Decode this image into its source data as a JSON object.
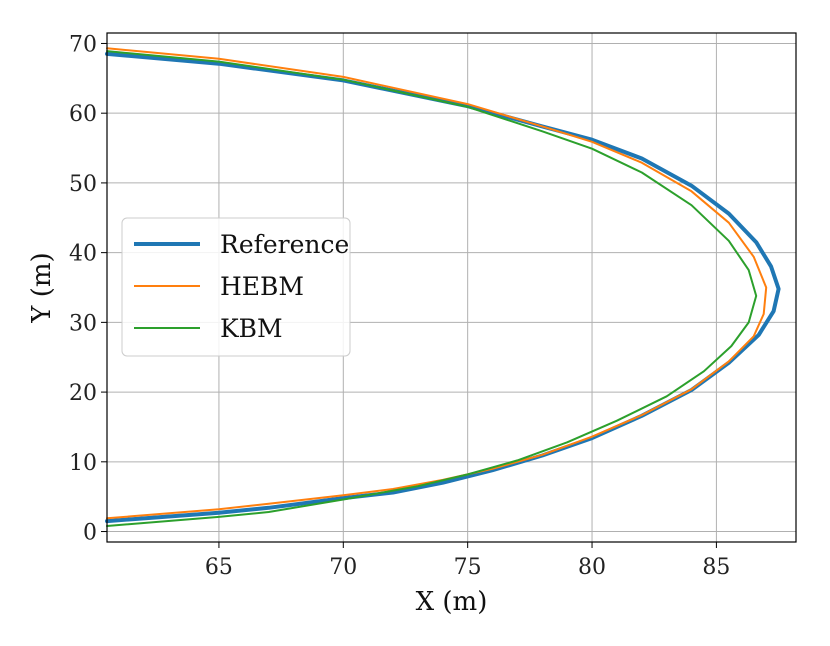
{
  "chart_data": {
    "type": "line",
    "xlabel": "X (m)",
    "ylabel": "Y (m)",
    "xlim": [
      60.5,
      88.2
    ],
    "ylim": [
      -1.5,
      71.5
    ],
    "x_ticks": [
      65,
      70,
      75,
      80,
      85
    ],
    "y_ticks": [
      0,
      10,
      20,
      30,
      40,
      50,
      60,
      70
    ],
    "grid": true,
    "legend_position": "center-left",
    "series": [
      {
        "name": "Reference",
        "color": "#1f77b4",
        "points": [
          [
            60.5,
            68.5
          ],
          [
            65,
            67.1
          ],
          [
            70,
            64.7
          ],
          [
            75,
            61.0
          ],
          [
            78,
            58.1
          ],
          [
            80,
            56.2
          ],
          [
            82,
            53.5
          ],
          [
            84,
            49.6
          ],
          [
            85.5,
            45.6
          ],
          [
            86.6,
            41.5
          ],
          [
            87.2,
            38.0
          ],
          [
            87.5,
            34.8
          ],
          [
            87.3,
            31.6
          ],
          [
            86.7,
            28.2
          ],
          [
            85.5,
            24.2
          ],
          [
            84,
            20.3
          ],
          [
            82,
            16.6
          ],
          [
            80,
            13.4
          ],
          [
            78,
            10.9
          ],
          [
            76,
            8.8
          ],
          [
            74,
            7.0
          ],
          [
            72,
            5.6
          ],
          [
            70,
            4.8
          ],
          [
            67,
            3.4
          ],
          [
            65,
            2.7
          ],
          [
            60.5,
            1.5
          ]
        ]
      },
      {
        "name": "HEBM",
        "color": "#ff7f0e",
        "points": [
          [
            60.5,
            69.3
          ],
          [
            65,
            67.8
          ],
          [
            70,
            65.2
          ],
          [
            75,
            61.3
          ],
          [
            78,
            58.1
          ],
          [
            80,
            55.9
          ],
          [
            82,
            52.9
          ],
          [
            84,
            48.8
          ],
          [
            85.5,
            44.3
          ],
          [
            86.5,
            39.4
          ],
          [
            87.0,
            35.0
          ],
          [
            86.9,
            31.2
          ],
          [
            86.5,
            28.0
          ],
          [
            85.5,
            24.4
          ],
          [
            84,
            20.4
          ],
          [
            82,
            16.7
          ],
          [
            80,
            13.6
          ],
          [
            78,
            11.0
          ],
          [
            76,
            9.0
          ],
          [
            74,
            7.4
          ],
          [
            72,
            6.1
          ],
          [
            70,
            5.2
          ],
          [
            67,
            4.0
          ],
          [
            65,
            3.2
          ],
          [
            60.5,
            1.9
          ]
        ]
      },
      {
        "name": "KBM",
        "color": "#2ca02c",
        "points": [
          [
            60.5,
            68.9
          ],
          [
            65,
            67.4
          ],
          [
            70,
            64.8
          ],
          [
            75,
            60.9
          ],
          [
            78,
            57.4
          ],
          [
            80,
            54.9
          ],
          [
            82,
            51.5
          ],
          [
            84,
            46.8
          ],
          [
            85.5,
            41.7
          ],
          [
            86.3,
            37.5
          ],
          [
            86.6,
            33.8
          ],
          [
            86.3,
            30.0
          ],
          [
            85.6,
            26.6
          ],
          [
            84.5,
            23.0
          ],
          [
            83,
            19.4
          ],
          [
            81,
            15.9
          ],
          [
            79,
            12.8
          ],
          [
            77,
            10.2
          ],
          [
            75,
            8.2
          ],
          [
            73,
            6.5
          ],
          [
            70,
            4.6
          ],
          [
            67,
            2.8
          ],
          [
            65,
            2.1
          ],
          [
            60.5,
            0.8
          ]
        ]
      }
    ]
  }
}
